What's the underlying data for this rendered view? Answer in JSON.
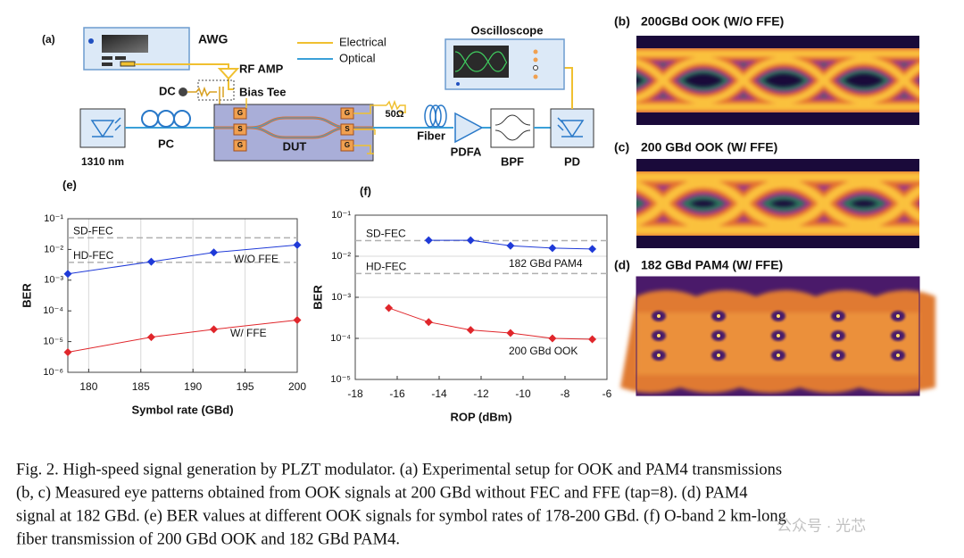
{
  "setup": {
    "label": "(a)",
    "awg": "AWG",
    "legend": [
      "Electrical",
      "Optical"
    ],
    "rf_amp": "RF AMP",
    "dc": "DC",
    "bias_tee": "Bias Tee",
    "oscilloscope": "Oscilloscope",
    "laser": "1310 nm",
    "pc": "PC",
    "dut": "DUT",
    "electrodes": [
      "G",
      "S",
      "G",
      "G",
      "S",
      "G"
    ],
    "termination": "50Ω",
    "fiber": "Fiber",
    "pdfa": "PDFA",
    "bpf": "BPF",
    "pd": "PD"
  },
  "eyes": [
    {
      "label": "(b)",
      "title": "200GBd OOK (W/O FFE)"
    },
    {
      "label": "(c)",
      "title": "200 GBd OOK (W/ FFE)"
    },
    {
      "label": "(d)",
      "title": "182 GBd PAM4 (W/ FFE)"
    }
  ],
  "chart_data": [
    {
      "type": "line",
      "panel": "(e)",
      "x_label": "Symbol rate (GBd)",
      "y_label": "BER",
      "y_scale": "log",
      "x_grid": true,
      "y_grid": false,
      "xlim": [
        178,
        200
      ],
      "xticks": [
        180,
        185,
        190,
        195,
        200
      ],
      "ylim": [
        1e-06,
        0.1
      ],
      "yticks": [
        {
          "value": 0.1,
          "label": "10⁻¹"
        },
        {
          "value": 0.01,
          "label": "10⁻²"
        },
        {
          "value": 0.001,
          "label": "10⁻³"
        },
        {
          "value": 0.0001,
          "label": "10⁻⁴"
        },
        {
          "value": 1e-05,
          "label": "10⁻⁵"
        },
        {
          "value": 1e-06,
          "label": "10⁻⁶"
        }
      ],
      "thresholds": [
        {
          "name": "SD-FEC",
          "value": 0.024
        },
        {
          "name": "HD-FEC",
          "value": 0.0038
        }
      ],
      "series": [
        {
          "name": "W/O FFE",
          "color": "#1f3ad8",
          "x": [
            178,
            186,
            192,
            200
          ],
          "values": [
            0.0016,
            0.004,
            0.008,
            0.014
          ]
        },
        {
          "name": "W/ FFE",
          "color": "#e0262b",
          "x": [
            178,
            186,
            192,
            200
          ],
          "values": [
            4.5e-06,
            1.4e-05,
            2.5e-05,
            5e-05
          ]
        }
      ]
    },
    {
      "type": "line",
      "panel": "(f)",
      "x_label": "ROP (dBm)",
      "y_label": "BER",
      "y_scale": "log",
      "x_grid": false,
      "y_grid": true,
      "xlim": [
        -18,
        -6
      ],
      "xticks": [
        -18,
        -16,
        -14,
        -12,
        -10,
        -8,
        -6
      ],
      "ylim": [
        1e-05,
        0.1
      ],
      "yticks": [
        {
          "value": 0.1,
          "label": "10⁻¹"
        },
        {
          "value": 0.01,
          "label": "10⁻²"
        },
        {
          "value": 0.001,
          "label": "10⁻³"
        },
        {
          "value": 0.0001,
          "label": "10⁻⁴"
        },
        {
          "value": 1e-05,
          "label": "10⁻⁵"
        }
      ],
      "thresholds": [
        {
          "name": "SD-FEC",
          "value": 0.024
        },
        {
          "name": "HD-FEC",
          "value": 0.0038
        }
      ],
      "series": [
        {
          "name": "182 GBd PAM4",
          "color": "#1f3ad8",
          "x": [
            -14.5,
            -12.5,
            -10.6,
            -8.6,
            -6.7
          ],
          "values": [
            0.0245,
            0.0245,
            0.018,
            0.0158,
            0.015
          ]
        },
        {
          "name": "200 GBd OOK",
          "color": "#e0262b",
          "x": [
            -16.4,
            -14.5,
            -12.5,
            -10.6,
            -8.6,
            -6.7
          ],
          "values": [
            0.00055,
            0.00025,
            0.00016,
            0.000135,
            0.0001,
            9.5e-05
          ]
        }
      ]
    }
  ],
  "caption": [
    "Fig. 2. High-speed signal generation by PLZT modulator. (a) Experimental setup for OOK and PAM4 transmissions",
    "(b, c) Measured eye patterns obtained from OOK signals at 200 GBd without FEC and FFE (tap=8). (d) PAM4",
    "signal at 182 GBd. (e) BER values at different OOK signals for symbol rates of 178-200 GBd. (f) O-band 2 km-long",
    "fiber transmission of 200 GBd OOK and 182 GBd PAM4."
  ],
  "watermark": "公众号 · 光芯"
}
